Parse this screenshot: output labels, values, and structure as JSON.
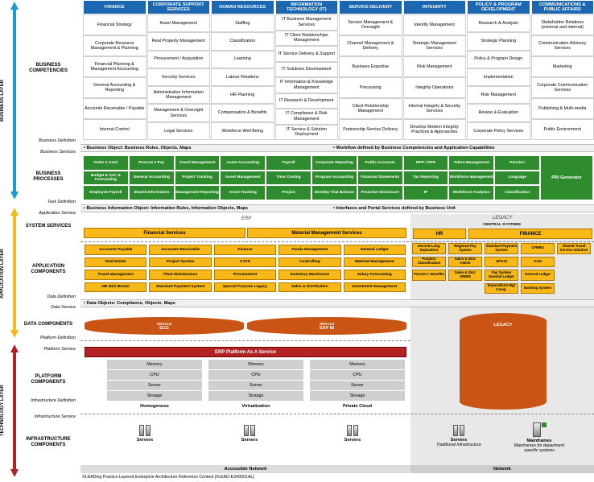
{
  "layers": {
    "business": "BUSINESS LAYER",
    "application": "APPLICATION LAYER",
    "technology": "TECHNOLOGY LAYER"
  },
  "rows": {
    "business_competencies": "BUSINESS COMPETENCIES",
    "business_processes": "BUSINESS PROCESSES",
    "system_services": "SYSTEM SERVICES",
    "application_components": "APPLICATION COMPONENTS",
    "data_components": "DATA COMPONENTS",
    "platform_components": "PLATFORM COMPONENTS",
    "infrastructure_components": "INFRASTRUCTURE COMPONENTS"
  },
  "side_labels": {
    "business_definition": "Business Definition",
    "business_services": "Business Services",
    "task_definition": "Task Definition",
    "application_service": "Application Service",
    "data_definition": "Data Definition",
    "data_service": "Data Service",
    "platform_definition": "Platform Definition",
    "platform_service": "Platform Service",
    "infrastructure_definition": "Infrastructure Definition",
    "infrastructure_service": "Infrastructure Service"
  },
  "columns": [
    "FINANCE",
    "CORPORATE SUPPORT SERVICES",
    "HUMAN RESOURCES",
    "INFORMATION TECHNOLOGY (IT)",
    "SERVICE DELIVERY",
    "INTEGRITY",
    "POLICY & PROGRAM DEVELOPMENT",
    "COMMUNICATIONS & PUBLIC AFFAIRS"
  ],
  "competencies": [
    [
      "Financial Strategy",
      "Corporate Resource Management & Planning",
      "Financial Planning & Management Accounting",
      "General Accounting & Reporting",
      "Accounts Receivable / Payable",
      "Internal Control"
    ],
    [
      "Asset Management",
      "Real Property Management",
      "Procurement / Acquisition",
      "Security Services",
      "Administrative Information Management",
      "Management & Oversight Services",
      "Legal Services"
    ],
    [
      "Staffing",
      "Classification",
      "Learning",
      "Labour Relations",
      "HR Planning",
      "Compensation & Benefits",
      "Workforce Well Being"
    ],
    [
      "IT Business Management Services",
      "IT Client Relationships Management",
      "IT Service Delivery & Support",
      "IT Solutions Development",
      "IT Information & Knowledge Management",
      "IT Research & Development",
      "IT Compliance & Risk Management",
      "IT Service & Solution Deployment"
    ],
    [
      "Service Management & Oversight",
      "Channel Management & Delivery",
      "Business Expertise",
      "Processing",
      "Client Relationship Management",
      "Partnership Service Delivery"
    ],
    [
      "Identity Management",
      "Strategic Management Services",
      "Risk Management",
      "Integrity Operations",
      "Internal Integrity & Security Services",
      "Develop Modern Integrity Practices & Approaches"
    ],
    [
      "Research & Analysis",
      "Strategic Planning",
      "Policy & Program Design",
      "Implementation",
      "Risk Management",
      "Review & Evaluation",
      "Corporate Policy Services"
    ],
    [
      "Stakeholder Relations (external and internal)",
      "Communication Advisory Services",
      "Marketing",
      "Corporate Communication Services",
      "Publishing & Multi-media",
      "Public Environment"
    ]
  ],
  "business_object_bar": {
    "left": "• Business Object: Business Rules, Objects, Maps",
    "right": "• Workflow defined by Business Competencies and Application Capabilities"
  },
  "processes": [
    [
      "Order 2 Cash",
      "Procure 2 Pay",
      "Travel Management",
      "Asset Accounting",
      "Payroll",
      "Corporate Reporting",
      "Public Accounts",
      "RPP / DPR",
      "Talent Management",
      "Pension"
    ],
    [
      "Budget & AVC & Forecasting",
      "General Accounting",
      "Project Tracking",
      "Asset Management",
      "Time Costing",
      "Program Accounting",
      "Financial Statements",
      "Tax Reporting",
      "Workforce Management",
      "Language"
    ],
    [
      "Employee Payroll",
      "Shared Information",
      "Management Reporting",
      "Asset Tracking",
      "Project",
      "Monthly Trial Balance",
      "Proactive Disclosure",
      "IP",
      "Workforce Analytics",
      "Classification"
    ]
  ],
  "pri_generator": "PRI Generator",
  "info_object_bar": {
    "left": "• Business Information Object: Information Rules, Information Objects, Maps",
    "right": "• Interfaces and Portal Services defined by Business Unit"
  },
  "erp_label": "ERP",
  "legacy_label": "LEGACY",
  "system_services": {
    "financial": "Financial Services",
    "material": "Material Management Services",
    "hr": "HR",
    "finance": "FINANCE",
    "central_systems": "CENTRAL SYSTEMS"
  },
  "app_components": [
    [
      "Accounts Payable",
      "Accounts Receivable",
      "Finance",
      "Funds Management",
      "General Ledger"
    ],
    [
      "Real Estate",
      "Project System",
      "CATS",
      "Controlling",
      "Material Management"
    ],
    [
      "Travel Management",
      "Plant Maintenance",
      "Procurement",
      "Inventory Warehouse",
      "Salary Forecasting"
    ],
    [
      "HR Mini Master",
      "Standard Payment System",
      "Special Purpose Legacy",
      "Sales & Distribution",
      "Investment Management"
    ]
  ],
  "legacy_components": [
    [
      "Second Lang. Equivalent",
      "Regional Pay System",
      "Standard Payment System",
      "CFMRS",
      "Shared Travel Service Initiative"
    ],
    [
      "Position Classification",
      "Sales & Dist. AMOS",
      "SPS-III",
      "OAG",
      ""
    ],
    [
      "Pension / Benefits",
      "Sales & Dist. SRMIS",
      "Pay System General Ledger",
      "General Ledger",
      ""
    ],
    [
      "",
      "",
      "Expenditure Mgt Comp.",
      "Banking System",
      ""
    ]
  ],
  "data_bar": "• Data Objects: Compliance, Objects, Maps",
  "data_components": {
    "oracle": "ORACLE",
    "ecc": "ECC",
    "sapbi": "SAP BI",
    "legacy": "LEGACY"
  },
  "platform_banner": "ERP Platform As A Service",
  "platform_stack": [
    "Memory",
    "CPU",
    "Server",
    "Storage"
  ],
  "platform_types": [
    "Homogenous",
    "Virtualization",
    "Private Cloud"
  ],
  "servers_label": "Servers",
  "legacy_infra": {
    "servers": "Servers",
    "servers_sub": "Traditional Infrastructure",
    "mainframes": "Mainframes",
    "mainframes_sub": "Mainframes for department specific systems"
  },
  "network": {
    "accessible": "Accessible Network",
    "network": "Network"
  },
  "footer": "©LEADing Practice Layered Enterprise Architecture Reference Content [#LEAD-ES40001AL]",
  "colors": {
    "blue": "#1b67b1",
    "green": "#2e8b2e",
    "yellow": "#f7b818",
    "red": "#b22222",
    "orange": "#c95414"
  }
}
